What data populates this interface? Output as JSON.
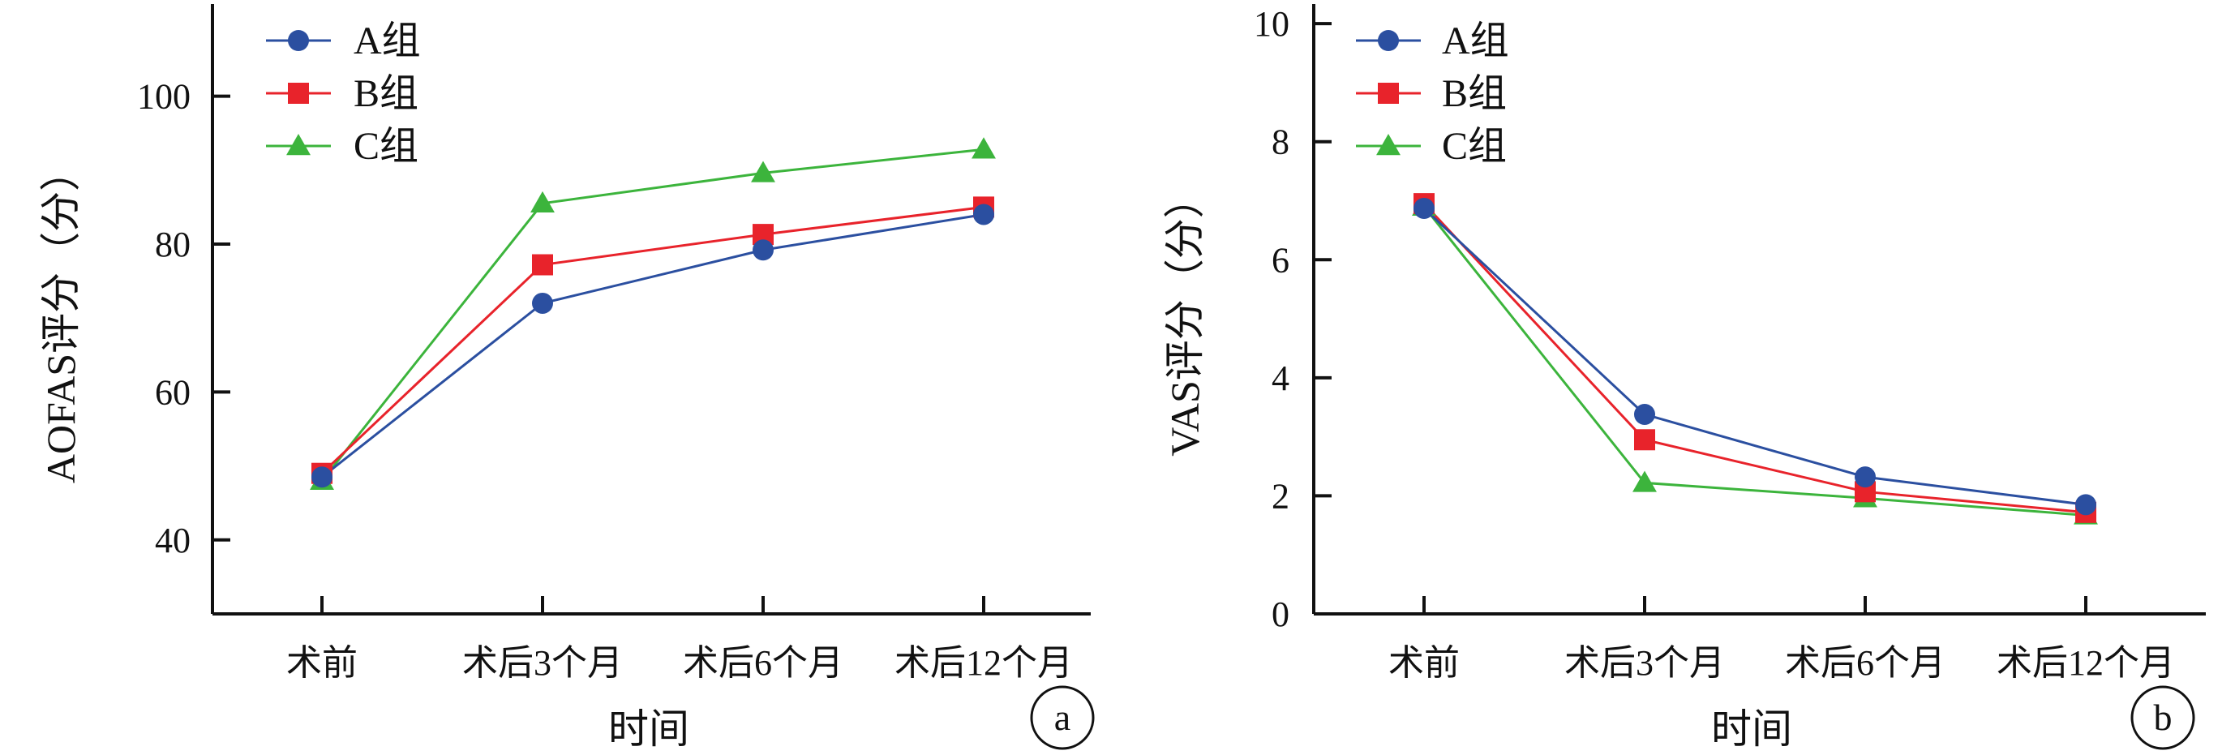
{
  "legend": [
    "A组",
    "B组",
    "C组"
  ],
  "xlabel": "时间",
  "categories": [
    "术前",
    "术后3个月",
    "术后6个月",
    "术后12个月"
  ],
  "colors": {
    "A组": "#2b4fa0",
    "B组": "#e8232b",
    "C组": "#3cb43c"
  },
  "markers": {
    "A组": "circle",
    "B组": "square",
    "C组": "triangle"
  },
  "chart_data": [
    {
      "type": "line",
      "panel_label": "a",
      "ylabel": "AOFAS评分（分）",
      "xlabel": "时间",
      "categories": [
        "术前",
        "术后3个月",
        "术后6个月",
        "术后12个月"
      ],
      "yticks": [
        40,
        60,
        80,
        100
      ],
      "ylim": [
        30,
        113
      ],
      "grid": false,
      "legend_position": "top-left",
      "series": [
        {
          "name": "A组",
          "values": [
            48.5,
            72.0,
            79.2,
            84.0
          ]
        },
        {
          "name": "B组",
          "values": [
            49.0,
            77.2,
            81.3,
            85.0
          ]
        },
        {
          "name": "C组",
          "values": [
            48.0,
            85.5,
            89.6,
            92.8
          ]
        }
      ]
    },
    {
      "type": "line",
      "panel_label": "b",
      "ylabel": "VAS评分（分）",
      "xlabel": "时间",
      "categories": [
        "术前",
        "术后3个月",
        "术后6个月",
        "术后12个月"
      ],
      "yticks": [
        0,
        2,
        4,
        6,
        8,
        10
      ],
      "ylim": [
        0,
        10.4
      ],
      "grid": false,
      "legend_position": "top-left",
      "series": [
        {
          "name": "A组",
          "values": [
            6.87,
            3.38,
            2.32,
            1.85
          ]
        },
        {
          "name": "B组",
          "values": [
            6.95,
            2.95,
            2.07,
            1.72
          ]
        },
        {
          "name": "C组",
          "values": [
            6.9,
            2.22,
            1.96,
            1.67
          ]
        }
      ]
    }
  ]
}
